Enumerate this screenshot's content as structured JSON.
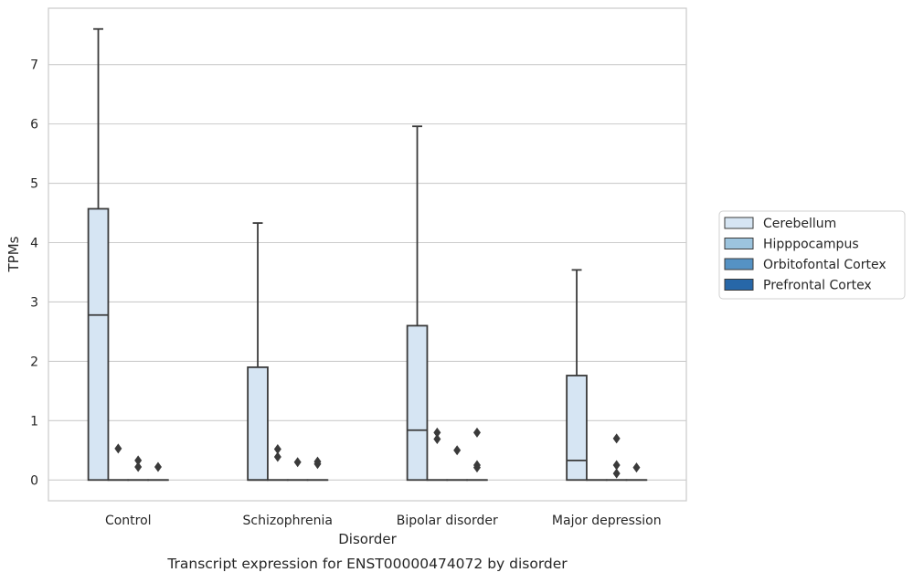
{
  "chart_data": {
    "type": "boxplot",
    "title": "Transcript expression for ENST00000474072 by disorder",
    "xlabel": "Disorder",
    "ylabel": "TPMs",
    "ylim": [
      -0.35,
      7.95
    ],
    "yticks": [
      0,
      1,
      2,
      3,
      4,
      5,
      6,
      7
    ],
    "categories": [
      "Control",
      "Schizophrenia",
      "Bipolar disorder",
      "Major depression"
    ],
    "grid": "horizontal",
    "legend_position": "right",
    "series": [
      {
        "name": "Cerebellum",
        "color": "#d6e5f3",
        "boxes": [
          {
            "q1": 0,
            "median": 2.78,
            "q3": 4.57,
            "whislo": 0,
            "whishi": 7.6,
            "fliers": []
          },
          {
            "q1": 0,
            "median": 0,
            "q3": 1.9,
            "whislo": 0,
            "whishi": 4.33,
            "fliers": []
          },
          {
            "q1": 0,
            "median": 0.84,
            "q3": 2.6,
            "whislo": 0,
            "whishi": 5.96,
            "fliers": []
          },
          {
            "q1": 0,
            "median": 0.33,
            "q3": 1.76,
            "whislo": 0,
            "whishi": 3.54,
            "fliers": []
          }
        ]
      },
      {
        "name": "Hipppocampus",
        "color": "#9cc4de",
        "boxes": [
          {
            "q1": 0,
            "median": 0,
            "q3": 0,
            "whislo": 0,
            "whishi": 0,
            "fliers": [
              0.53
            ]
          },
          {
            "q1": 0,
            "median": 0,
            "q3": 0,
            "whislo": 0,
            "whishi": 0,
            "fliers": [
              0.52,
              0.39
            ]
          },
          {
            "q1": 0,
            "median": 0,
            "q3": 0,
            "whislo": 0,
            "whishi": 0,
            "fliers": [
              0.8,
              0.69
            ]
          },
          {
            "q1": 0,
            "median": 0,
            "q3": 0,
            "whislo": 0,
            "whishi": 0,
            "fliers": []
          }
        ]
      },
      {
        "name": "Orbitofontal Cortex",
        "color": "#5592c4",
        "boxes": [
          {
            "q1": 0,
            "median": 0,
            "q3": 0,
            "whislo": 0,
            "whishi": 0,
            "fliers": [
              0.33,
              0.22
            ]
          },
          {
            "q1": 0,
            "median": 0,
            "q3": 0,
            "whislo": 0,
            "whishi": 0,
            "fliers": [
              0.3
            ]
          },
          {
            "q1": 0,
            "median": 0,
            "q3": 0,
            "whislo": 0,
            "whishi": 0,
            "fliers": [
              0.5
            ]
          },
          {
            "q1": 0,
            "median": 0,
            "q3": 0,
            "whislo": 0,
            "whishi": 0,
            "fliers": [
              0.7,
              0.25,
              0.11
            ]
          }
        ]
      },
      {
        "name": "Prefrontal Cortex",
        "color": "#2767a8",
        "boxes": [
          {
            "q1": 0,
            "median": 0,
            "q3": 0,
            "whislo": 0,
            "whishi": 0,
            "fliers": [
              0.22
            ]
          },
          {
            "q1": 0,
            "median": 0,
            "q3": 0,
            "whislo": 0,
            "whishi": 0,
            "fliers": [
              0.31,
              0.27
            ]
          },
          {
            "q1": 0,
            "median": 0,
            "q3": 0,
            "whislo": 0,
            "whishi": 0,
            "fliers": [
              0.8,
              0.25,
              0.21
            ]
          },
          {
            "q1": 0,
            "median": 0,
            "q3": 0,
            "whislo": 0,
            "whishi": 0,
            "fliers": [
              0.21
            ]
          }
        ]
      }
    ]
  }
}
